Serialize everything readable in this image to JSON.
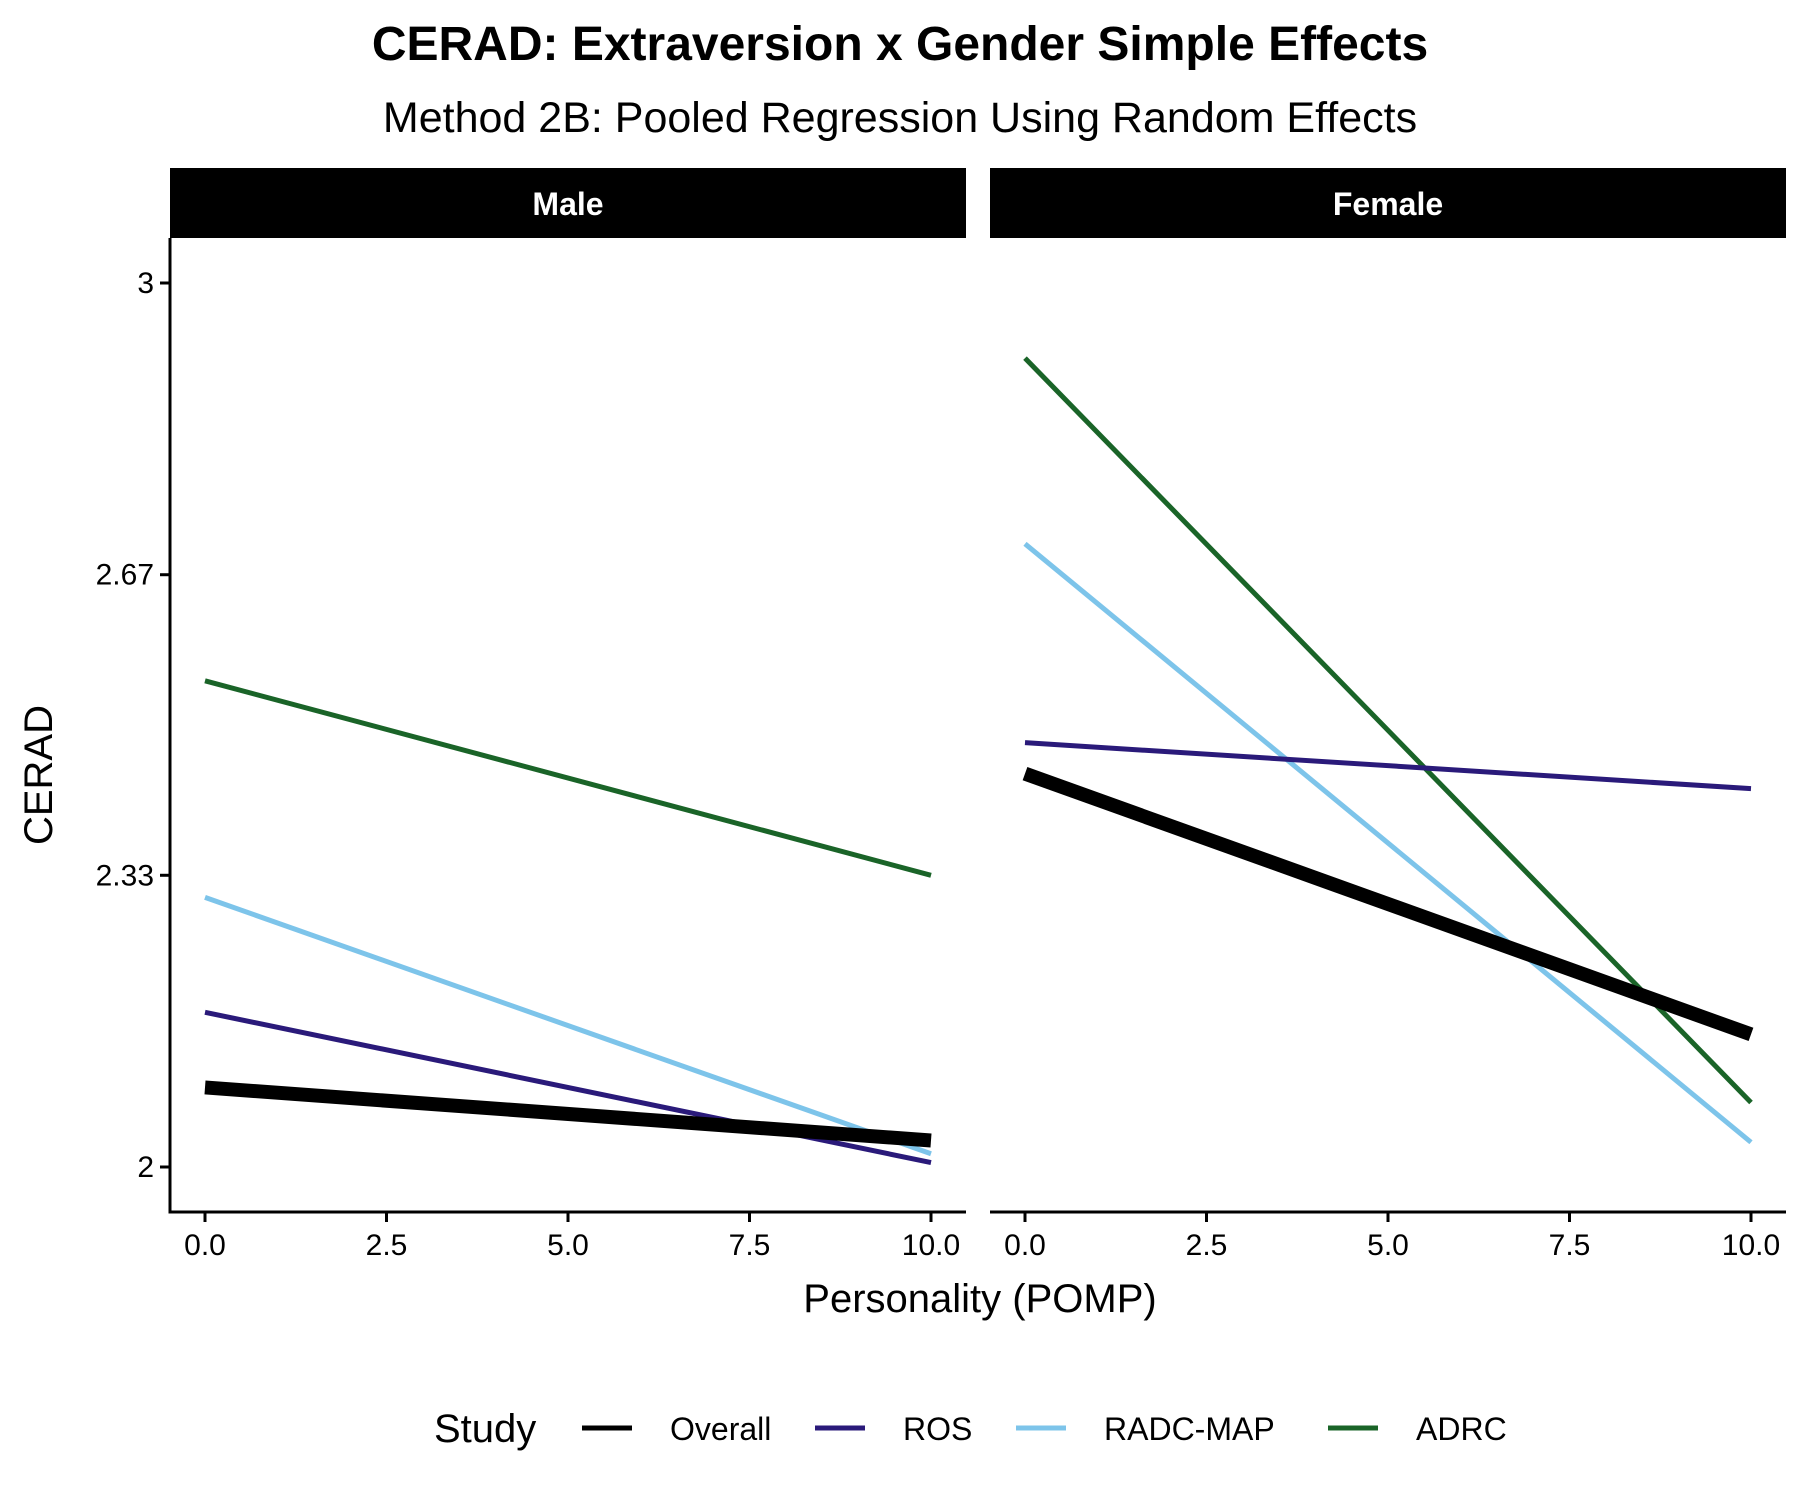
{
  "chart_data": {
    "type": "line",
    "title": "CERAD: Extraversion x Gender Simple Effects",
    "subtitle": "Method 2B: Pooled Regression Using Random Effects",
    "xlabel": "Personality (POMP)",
    "ylabel": "CERAD",
    "x_ticks": [
      "0.0",
      "2.5",
      "5.0",
      "7.5",
      "10.0"
    ],
    "x_tick_values": [
      0,
      2.5,
      5,
      7.5,
      10
    ],
    "y_ticks": [
      "2",
      "2.33",
      "2.67",
      "3"
    ],
    "y_tick_values": [
      2,
      2.33,
      2.67,
      3
    ],
    "xlim": [
      -0.5,
      10.5
    ],
    "ylim": [
      1.95,
      3.05
    ],
    "grid": false,
    "legend": {
      "title": "Study",
      "position": "bottom",
      "entries": [
        "Overall",
        "ROS",
        "RADC-MAP",
        "ADRC"
      ]
    },
    "series_styles": {
      "Overall": {
        "color": "#000000",
        "width": 14
      },
      "ROS": {
        "color": "#2a1a7a",
        "width": 5
      },
      "RADC-MAP": {
        "color": "#7dc4ea",
        "width": 5
      },
      "ADRC": {
        "color": "#1a6428",
        "width": 5
      }
    },
    "facets": [
      {
        "label": "Male",
        "series": [
          {
            "name": "Overall",
            "x": [
              0,
              10
            ],
            "y": [
              2.09,
              2.03
            ]
          },
          {
            "name": "ROS",
            "x": [
              0,
              10
            ],
            "y": [
              2.175,
              2.005
            ]
          },
          {
            "name": "RADC-MAP",
            "x": [
              0,
              10
            ],
            "y": [
              2.305,
              2.015
            ]
          },
          {
            "name": "ADRC",
            "x": [
              0,
              10
            ],
            "y": [
              2.55,
              2.33
            ]
          }
        ]
      },
      {
        "label": "Female",
        "series": [
          {
            "name": "Overall",
            "x": [
              0,
              10
            ],
            "y": [
              2.445,
              2.15
            ]
          },
          {
            "name": "ROS",
            "x": [
              0,
              10
            ],
            "y": [
              2.48,
              2.428
            ]
          },
          {
            "name": "RADC-MAP",
            "x": [
              0,
              10
            ],
            "y": [
              2.705,
              2.028
            ]
          },
          {
            "name": "ADRC",
            "x": [
              0,
              10
            ],
            "y": [
              2.915,
              2.073
            ]
          }
        ]
      }
    ]
  }
}
